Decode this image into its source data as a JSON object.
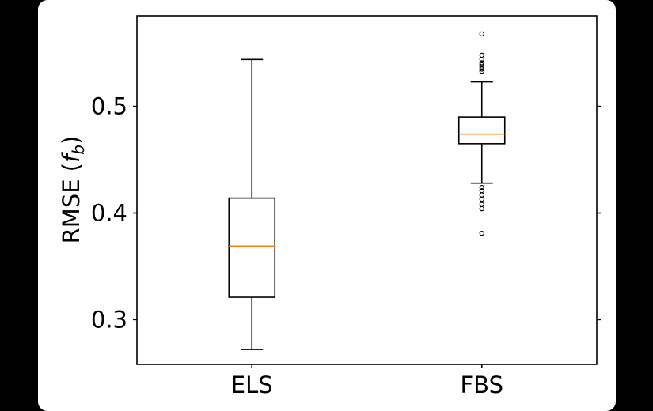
{
  "chart_data": {
    "type": "box",
    "title": "",
    "xlabel": "",
    "ylabel": "RMSE (",
    "ylabel_symbol": "f",
    "ylabel_subscript": "b",
    "ylabel_close": ")",
    "categories": [
      "ELS",
      "FBS"
    ],
    "ylim": [
      0.258,
      0.585
    ],
    "yticks": [
      0.3,
      0.4,
      0.5
    ],
    "ytick_labels": [
      "0.3",
      "0.4",
      "0.5"
    ],
    "grid": false,
    "boxes": [
      {
        "category": "ELS",
        "whisker_low": 0.272,
        "q1": 0.321,
        "median": 0.369,
        "q3": 0.414,
        "whisker_high": 0.544,
        "outliers": []
      },
      {
        "category": "FBS",
        "whisker_low": 0.428,
        "q1": 0.465,
        "median": 0.474,
        "q3": 0.49,
        "whisker_high": 0.523,
        "outliers": [
          0.381,
          0.404,
          0.408,
          0.413,
          0.417,
          0.421,
          0.424,
          0.533,
          0.535,
          0.537,
          0.539,
          0.541,
          0.544,
          0.548,
          0.568
        ]
      }
    ],
    "colors": {
      "median": "#ff7f0e",
      "box": "#000000"
    }
  }
}
